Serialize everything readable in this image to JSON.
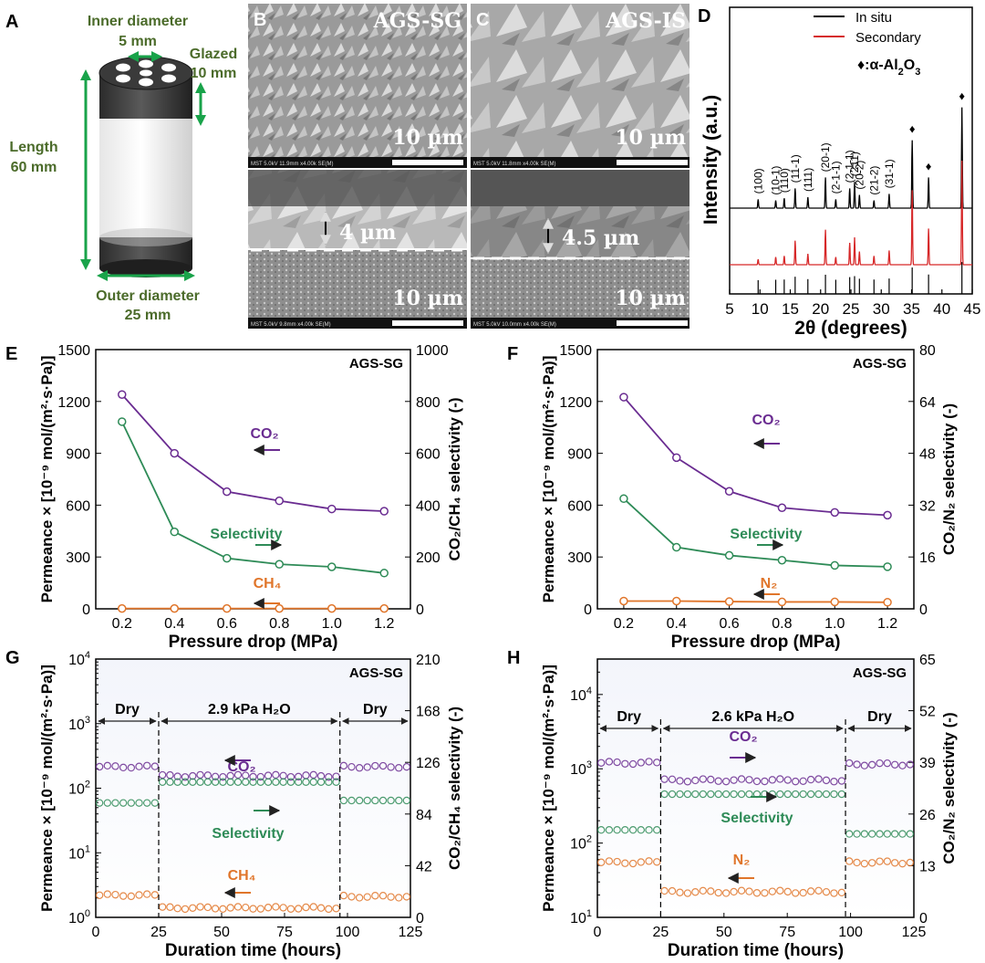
{
  "colors": {
    "co2": "#6a2c91",
    "selectivity": "#2e8b57",
    "ch4": "#e0752a",
    "n2": "#e0752a",
    "insitu": "#000000",
    "secondary": "#d62728",
    "green_arrow": "#19a34a",
    "label_green": "#4b6b2a",
    "sem_light": "#bdbdbd",
    "sem_dark": "#5a5a5a"
  },
  "panelA": {
    "letter": "A",
    "inner_diameter": [
      "Inner diameter",
      "5 mm"
    ],
    "glazed": [
      "Glazed",
      "10 mm"
    ],
    "length": [
      "Length",
      "60 mm"
    ],
    "outer_diameter": [
      "Outer diameter",
      "25 mm"
    ]
  },
  "panelB": {
    "letter": "B",
    "name": "AGS-SG",
    "scale_top": "10 µm",
    "scale_bottom": "10 µm",
    "thickness": "4 µm",
    "info_top": "MST 5.0kV 11.9mm x4.00k SE(M)",
    "info_bottom": "MST 5.0kV 9.8mm x4.00k SE(M)"
  },
  "panelC": {
    "letter": "C",
    "name": "AGS-IS",
    "scale_top": "10 µm",
    "scale_bottom": "10 µm",
    "thickness": "4.5 µm",
    "info_top": "MST 5.0kV 11.8mm x4.00k SE(M)",
    "info_bottom": "MST 5.0kV 10.0mm x4.00k SE(M)"
  },
  "chart_data": [
    {
      "panel": "D",
      "type": "line",
      "xlabel": "2θ (degrees)",
      "ylabel": "Intensity (a.u.)",
      "xlim": [
        5,
        45
      ],
      "xticks": [
        5,
        10,
        15,
        20,
        25,
        30,
        35,
        40,
        45
      ],
      "legend": [
        "In situ",
        "Secondary"
      ],
      "legend_position": "top-right",
      "annotation": "♦:α-Al2O3",
      "peaks": [
        {
          "x": 9.7,
          "label": "(100)",
          "h_insitu": 0.08,
          "h_secondary": 0.05
        },
        {
          "x": 12.6,
          "label": "(10-1)",
          "h_insitu": 0.07,
          "h_secondary": 0.07
        },
        {
          "x": 14.0,
          "label": "(110)",
          "h_insitu": 0.09,
          "h_secondary": 0.08
        },
        {
          "x": 15.8,
          "label": "(11-1)",
          "h_insitu": 0.18,
          "h_secondary": 0.22
        },
        {
          "x": 17.9,
          "label": "(111)",
          "h_insitu": 0.1,
          "h_secondary": 0.1
        },
        {
          "x": 20.8,
          "label": "(20-1)",
          "h_insitu": 0.28,
          "h_secondary": 0.32
        },
        {
          "x": 22.5,
          "label": "(2-1-1)",
          "h_insitu": 0.08,
          "h_secondary": 0.07
        },
        {
          "x": 24.8,
          "label": "(2-1-1)",
          "h_insitu": 0.18,
          "h_secondary": 0.2
        },
        {
          "x": 25.6,
          "label": "(211)",
          "h_insitu": 0.24,
          "h_secondary": 0.25
        },
        {
          "x": 26.4,
          "label": "(20-2)",
          "h_insitu": 0.12,
          "h_secondary": 0.12
        },
        {
          "x": 28.8,
          "label": "(21-2)",
          "h_insitu": 0.07,
          "h_secondary": 0.08
        },
        {
          "x": 31.3,
          "label": "(31-1)",
          "h_insitu": 0.13,
          "h_secondary": 0.13
        },
        {
          "x": 35.1,
          "label": "♦",
          "h_insitu": 0.62,
          "h_secondary": 0.68
        },
        {
          "x": 37.8,
          "label": "♦",
          "h_insitu": 0.28,
          "h_secondary": 0.33
        },
        {
          "x": 43.3,
          "label": "♦",
          "h_insitu": 0.92,
          "h_secondary": 0.95
        }
      ]
    },
    {
      "panel": "E",
      "type": "line",
      "label": "AGS-SG",
      "xlabel": "Pressure drop (MPa)",
      "ylabel": "Permeance × [10⁻⁹ mol/(m²·s·Pa)]",
      "y2label": "CO₂/CH₄ selectivity (-)",
      "xlim": [
        0.1,
        1.3
      ],
      "ylim": [
        0,
        1500
      ],
      "y2lim": [
        0,
        1000
      ],
      "xticks": [
        0.2,
        0.4,
        0.6,
        0.8,
        1.0,
        1.2
      ],
      "yticks": [
        0,
        300,
        600,
        900,
        1200,
        1500
      ],
      "y2ticks": [
        0,
        200,
        400,
        600,
        800,
        1000
      ],
      "x": [
        0.2,
        0.4,
        0.6,
        0.8,
        1.0,
        1.2
      ],
      "series": [
        {
          "name": "CO₂",
          "axis": "left",
          "values": [
            1240,
            900,
            678,
            625,
            578,
            565
          ]
        },
        {
          "name": "Selectivity",
          "axis": "right",
          "values": [
            722,
            297,
            195,
            172,
            162,
            138
          ]
        },
        {
          "name": "CH₄",
          "axis": "left",
          "values": [
            2,
            2,
            2,
            2,
            2,
            2
          ]
        }
      ]
    },
    {
      "panel": "F",
      "type": "line",
      "label": "AGS-SG",
      "xlabel": "Pressure drop (MPa)",
      "ylabel": "Permeance × [10⁻⁹ mol/(m²·s·Pa)]",
      "y2label": "CO₂/N₂ selectivity (-)",
      "xlim": [
        0.1,
        1.3
      ],
      "ylim": [
        0,
        1500
      ],
      "y2lim": [
        0,
        80
      ],
      "xticks": [
        0.2,
        0.4,
        0.6,
        0.8,
        1.0,
        1.2
      ],
      "yticks": [
        0,
        300,
        600,
        900,
        1200,
        1500
      ],
      "y2ticks": [
        0,
        16,
        32,
        48,
        64,
        80
      ],
      "x": [
        0.2,
        0.4,
        0.6,
        0.8,
        1.0,
        1.2
      ],
      "series": [
        {
          "name": "CO₂",
          "axis": "left",
          "values": [
            1225,
            875,
            680,
            585,
            558,
            542
          ]
        },
        {
          "name": "Selectivity",
          "axis": "right",
          "values": [
            34,
            19,
            16.5,
            15,
            13.4,
            13
          ]
        },
        {
          "name": "N₂",
          "axis": "left",
          "values": [
            45,
            45,
            42,
            40,
            40,
            38
          ]
        }
      ]
    },
    {
      "panel": "G",
      "type": "scatter",
      "label": "AGS-SG",
      "xlabel": "Duration time (hours)",
      "ylabel": "Permeance × [10⁻⁹ mol/(m²·s·Pa)]",
      "y2label": "CO₂/CH₄ selectivity (-)",
      "xlim": [
        0,
        125
      ],
      "ylog": true,
      "ylim": [
        1,
        10000
      ],
      "y2lim": [
        0,
        210
      ],
      "xticks": [
        0,
        25,
        50,
        75,
        100,
        125
      ],
      "y2ticks": [
        0,
        42,
        84,
        126,
        168,
        210
      ],
      "segments": [
        {
          "label": "Dry",
          "from": 0,
          "to": 25
        },
        {
          "label": "2.9 kPa H₂O",
          "from": 25,
          "to": 97
        },
        {
          "label": "Dry",
          "from": 97,
          "to": 125
        }
      ],
      "series": [
        {
          "name": "CO₂",
          "axis": "left",
          "levels": [
            215,
            155,
            215
          ]
        },
        {
          "name": "Selectivity",
          "axis": "right",
          "levels": [
            93,
            110,
            95
          ]
        },
        {
          "name": "CH₄",
          "axis": "left",
          "levels": [
            2.2,
            1.4,
            2.1
          ]
        }
      ]
    },
    {
      "panel": "H",
      "type": "scatter",
      "label": "AGS-SG",
      "xlabel": "Duration time (hours)",
      "ylabel": "Permeance × [10⁻⁹ mol/(m²·s·Pa)]",
      "y2label": "CO₂/N₂ selectivity (-)",
      "xlim": [
        0,
        125
      ],
      "ylog": true,
      "ylim": [
        10,
        30000
      ],
      "y2lim": [
        0,
        65
      ],
      "xticks": [
        0,
        25,
        50,
        75,
        100,
        125
      ],
      "y2ticks": [
        0,
        13,
        26,
        39,
        52,
        65
      ],
      "segments": [
        {
          "label": "Dry",
          "from": 0,
          "to": 25
        },
        {
          "label": "2.6 kPa H₂O",
          "from": 25,
          "to": 98
        },
        {
          "label": "Dry",
          "from": 98,
          "to": 125
        }
      ],
      "series": [
        {
          "name": "CO₂",
          "axis": "left",
          "levels": [
            1200,
            700,
            1150
          ]
        },
        {
          "name": "Selectivity",
          "axis": "right",
          "levels": [
            22,
            31,
            21
          ]
        },
        {
          "name": "N₂",
          "axis": "left",
          "levels": [
            55,
            22,
            55
          ]
        }
      ]
    }
  ]
}
